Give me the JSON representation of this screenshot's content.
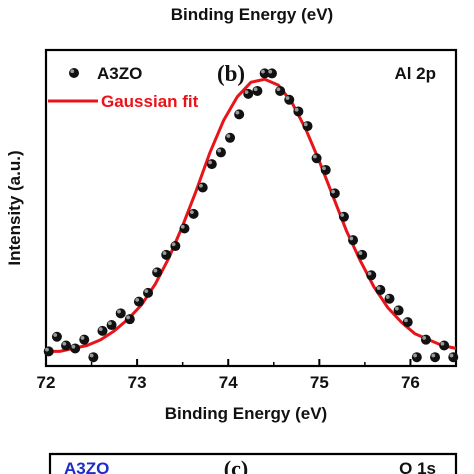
{
  "top_fragment": {
    "xlabel": "Binding Energy (eV)"
  },
  "chart_data": {
    "type": "scatter",
    "panel_label": "(b)",
    "annotation": "Al 2p",
    "xlabel": "Binding Energy (eV)",
    "ylabel": "Intensity (a.u.)",
    "xlim": [
      72.0,
      76.5
    ],
    "ylim": [
      0.0,
      1.08
    ],
    "x_ticks": [
      "72",
      "73",
      "74",
      "75",
      "76"
    ],
    "legend_placement": "top-left",
    "series": [
      {
        "name": "A3ZO",
        "style": "markers",
        "color": "#000000",
        "x": [
          72.03,
          72.12,
          72.22,
          72.32,
          72.42,
          72.52,
          72.62,
          72.72,
          72.82,
          72.92,
          73.02,
          73.12,
          73.22,
          73.32,
          73.42,
          73.52,
          73.62,
          73.72,
          73.82,
          73.92,
          74.02,
          74.12,
          74.22,
          74.32,
          74.4,
          74.48,
          74.57,
          74.67,
          74.77,
          74.87,
          74.97,
          75.07,
          75.17,
          75.27,
          75.37,
          75.47,
          75.57,
          75.67,
          75.77,
          75.87,
          75.97,
          76.07,
          76.17,
          76.27,
          76.37,
          76.47
        ],
        "y": [
          0.05,
          0.1,
          0.07,
          0.06,
          0.09,
          0.03,
          0.12,
          0.14,
          0.18,
          0.16,
          0.22,
          0.25,
          0.32,
          0.38,
          0.41,
          0.47,
          0.52,
          0.61,
          0.69,
          0.73,
          0.78,
          0.86,
          0.93,
          0.94,
          1.0,
          1.0,
          0.94,
          0.91,
          0.87,
          0.82,
          0.71,
          0.67,
          0.59,
          0.51,
          0.43,
          0.38,
          0.31,
          0.26,
          0.23,
          0.19,
          0.15,
          0.03,
          0.09,
          0.03,
          0.07,
          0.03
        ]
      },
      {
        "name": "Gaussian fit",
        "style": "line",
        "color": "#e8141a",
        "x": [
          72.0,
          72.15,
          72.3,
          72.45,
          72.6,
          72.75,
          72.9,
          73.05,
          73.2,
          73.35,
          73.5,
          73.65,
          73.8,
          73.95,
          74.1,
          74.25,
          74.4,
          74.55,
          74.7,
          74.85,
          75.0,
          75.15,
          75.3,
          75.45,
          75.6,
          75.75,
          75.9,
          76.05,
          76.2,
          76.35,
          76.5
        ],
        "y": [
          0.05,
          0.05,
          0.06,
          0.07,
          0.09,
          0.12,
          0.16,
          0.21,
          0.28,
          0.37,
          0.48,
          0.6,
          0.73,
          0.84,
          0.92,
          0.97,
          0.98,
          0.96,
          0.9,
          0.81,
          0.7,
          0.58,
          0.46,
          0.36,
          0.27,
          0.2,
          0.15,
          0.11,
          0.09,
          0.07,
          0.06
        ]
      }
    ]
  },
  "bottom_fragment": {
    "legend_label": "A3ZO",
    "panel_label": "(c)",
    "annotation": "O 1s"
  }
}
